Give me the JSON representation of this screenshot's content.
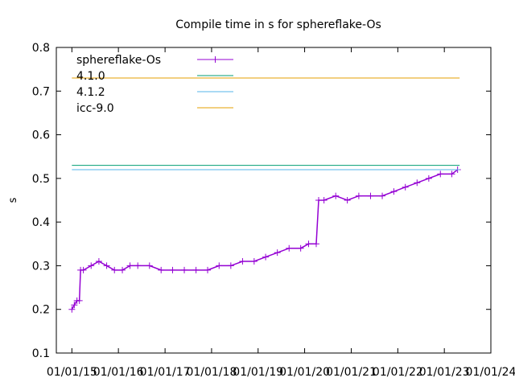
{
  "chart_data": {
    "type": "line",
    "title": "Compile time in s for sphereflake-Os",
    "xlabel": "",
    "ylabel": "s",
    "x_axis": {
      "kind": "date",
      "ticks": [
        "01/01/15",
        "01/01/16",
        "01/01/17",
        "01/01/18",
        "01/01/19",
        "01/01/20",
        "01/01/21",
        "01/01/22",
        "01/01/23",
        "01/01/24"
      ],
      "range": [
        "2014-09",
        "2024-01-01"
      ]
    },
    "ylim": [
      0.1,
      0.8
    ],
    "y_ticks": [
      "0.1",
      "0.2",
      "0.3",
      "0.4",
      "0.5",
      "0.6",
      "0.7",
      "0.8"
    ],
    "grid": false,
    "legend_position": "top-left",
    "series": [
      {
        "name": "sphereflake-Os",
        "color": "#9400d3",
        "marker": "plus",
        "points": [
          [
            "2015-01-01",
            0.2
          ],
          [
            "2015-01-20",
            0.21
          ],
          [
            "2015-02-10",
            0.22
          ],
          [
            "2015-03-01",
            0.22
          ],
          [
            "2015-03-10",
            0.29
          ],
          [
            "2015-04-01",
            0.29
          ],
          [
            "2015-06-01",
            0.3
          ],
          [
            "2015-08-01",
            0.31
          ],
          [
            "2015-10-01",
            0.3
          ],
          [
            "2015-12-01",
            0.29
          ],
          [
            "2016-02-01",
            0.29
          ],
          [
            "2016-04-01",
            0.3
          ],
          [
            "2016-06-01",
            0.3
          ],
          [
            "2016-09-01",
            0.3
          ],
          [
            "2016-12-01",
            0.29
          ],
          [
            "2017-03-01",
            0.29
          ],
          [
            "2017-06-01",
            0.29
          ],
          [
            "2017-09-01",
            0.29
          ],
          [
            "2017-12-01",
            0.29
          ],
          [
            "2018-03-01",
            0.3
          ],
          [
            "2018-06-01",
            0.3
          ],
          [
            "2018-09-01",
            0.31
          ],
          [
            "2018-12-01",
            0.31
          ],
          [
            "2019-03-01",
            0.32
          ],
          [
            "2019-06-01",
            0.33
          ],
          [
            "2019-09-01",
            0.34
          ],
          [
            "2019-12-01",
            0.34
          ],
          [
            "2020-02-01",
            0.35
          ],
          [
            "2020-04-01",
            0.35
          ],
          [
            "2020-04-20",
            0.45
          ],
          [
            "2020-06-01",
            0.45
          ],
          [
            "2020-09-01",
            0.46
          ],
          [
            "2020-12-01",
            0.45
          ],
          [
            "2021-03-01",
            0.46
          ],
          [
            "2021-06-01",
            0.46
          ],
          [
            "2021-09-01",
            0.46
          ],
          [
            "2021-12-01",
            0.47
          ],
          [
            "2022-03-01",
            0.48
          ],
          [
            "2022-06-01",
            0.49
          ],
          [
            "2022-09-01",
            0.5
          ],
          [
            "2022-12-01",
            0.51
          ],
          [
            "2023-03-01",
            0.51
          ],
          [
            "2023-04-15",
            0.52
          ]
        ]
      },
      {
        "name": "4.1.0",
        "color": "#009e73",
        "value": 0.53,
        "x_range": [
          "2015-01-01",
          "2023-05-01"
        ]
      },
      {
        "name": "4.1.2",
        "color": "#56b4e9",
        "value": 0.52,
        "x_range": [
          "2015-01-01",
          "2023-05-01"
        ]
      },
      {
        "name": "icc-9.0",
        "color": "#e69f00",
        "value": 0.73,
        "x_range": [
          "2015-01-01",
          "2023-05-01"
        ]
      }
    ]
  }
}
